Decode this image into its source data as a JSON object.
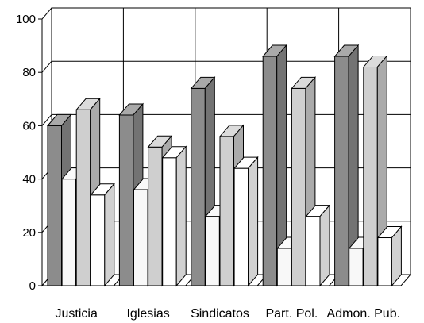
{
  "chart_data": {
    "type": "bar",
    "title": "",
    "xlabel": "",
    "ylabel": "",
    "ylim": [
      0,
      100
    ],
    "yticks": [
      0,
      20,
      40,
      60,
      80,
      100
    ],
    "grid": true,
    "three_d": true,
    "categories": [
      "Justicia",
      "Iglesias",
      "Sindicatos",
      "Part. Pol.",
      "Admon. Pub."
    ],
    "series": [
      {
        "values": [
          60,
          64,
          74,
          86,
          86
        ],
        "color": "#8c8c8c"
      },
      {
        "values": [
          40,
          36,
          26,
          14,
          14
        ],
        "color": "#f8f8f8"
      },
      {
        "values": [
          66,
          52,
          56,
          74,
          82
        ],
        "color": "#cfcfcf"
      },
      {
        "values": [
          34,
          48,
          44,
          26,
          18
        ],
        "color": "#ffffff"
      }
    ]
  }
}
